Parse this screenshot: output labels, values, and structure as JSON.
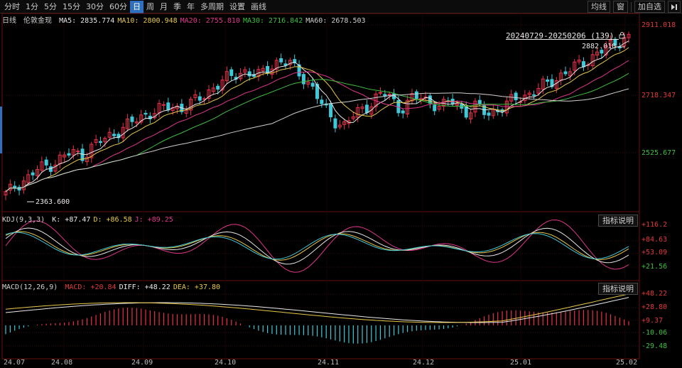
{
  "toolbar": {
    "tabs": [
      "分时",
      "1分",
      "5分",
      "15分",
      "30分",
      "60分",
      "日",
      "周",
      "月",
      "季",
      "年",
      "多周期",
      "设置",
      "画线"
    ],
    "active_tab": "日",
    "right": {
      "jun": "均线",
      "box": "窗",
      "add": "加自选"
    }
  },
  "main": {
    "period": "日线",
    "name": "伦敦金现",
    "ma": [
      {
        "label": "MA5:",
        "value": "2835.774",
        "color": "#e8e8e8"
      },
      {
        "label": "MA10:",
        "value": "2800.948",
        "color": "#e6c84a"
      },
      {
        "label": "MA20:",
        "value": "2755.810",
        "color": "#e0368c"
      },
      {
        "label": "MA30:",
        "value": "2716.842",
        "color": "#3fbf3f"
      },
      {
        "label": "MA60:",
        "value": "2678.503",
        "color": "#cfcfcf"
      }
    ],
    "range_label": "20240729-20250206 (139)",
    "max_label": "2882.010",
    "min_label": "2363.600",
    "axis": [
      "2911.018",
      "2718.347",
      "2525.677"
    ]
  },
  "kdj": {
    "name": "KDJ(9,3,3)",
    "values": [
      {
        "label": "K:",
        "value": "+87.47",
        "color": "#e8e8e8"
      },
      {
        "label": "D:",
        "value": "+86.58",
        "color": "#e6c84a"
      },
      {
        "label": "J:",
        "value": "+89.25",
        "color": "#e0368c"
      }
    ],
    "axis": [
      "+116.2",
      "+84.63",
      "+53.09",
      "+21.56"
    ],
    "button": "指标说明"
  },
  "macd": {
    "name": "MACD(12,26,9)",
    "values": [
      {
        "label": "MACD:",
        "value": "+20.84",
        "color": "#e03a3a"
      },
      {
        "label": "DIFF:",
        "value": "+48.22",
        "color": "#e8e8e8"
      },
      {
        "label": "DEA:",
        "value": "+37.80",
        "color": "#e6c84a"
      }
    ],
    "axis": [
      "+48.22",
      "+28.80",
      "+9.37",
      "-10.06",
      "-29.48"
    ],
    "button": "指标说明"
  },
  "xaxis": [
    "24.07",
    "24.08",
    "24.09",
    "24.10",
    "24.11",
    "24.12",
    "25.01",
    "25.02"
  ],
  "colors": {
    "up": "#e8304a",
    "down": "#3ec8d8",
    "grid": "#3a1010",
    "ma5": "#e8e8e8",
    "ma10": "#e6c84a",
    "ma20": "#e0368c",
    "ma30": "#3fbf3f",
    "ma60": "#cfcfcf"
  },
  "chart_data": {
    "type": "candlestick",
    "instrument": "伦敦金现",
    "x": [
      "24.07",
      "24.08",
      "24.09",
      "24.10",
      "24.11",
      "24.12",
      "25.01",
      "25.02"
    ],
    "closes": [
      2390,
      2420,
      2440,
      2470,
      2480,
      2500,
      2520,
      2510,
      2540,
      2560,
      2580,
      2600,
      2620,
      2640,
      2650,
      2660,
      2655,
      2670,
      2690,
      2720,
      2740,
      2760,
      2770,
      2750,
      2780,
      2800,
      2790,
      2760,
      2720,
      2660,
      2620,
      2600,
      2640,
      2660,
      2690,
      2700,
      2650,
      2680,
      2690,
      2670,
      2660,
      2680,
      2640,
      2660,
      2640,
      2650,
      2670,
      2690,
      2700,
      2720,
      2740,
      2760,
      2780,
      2800,
      2820,
      2840,
      2860,
      2882
    ],
    "ylim": [
      2363.6,
      2911.018
    ]
  }
}
